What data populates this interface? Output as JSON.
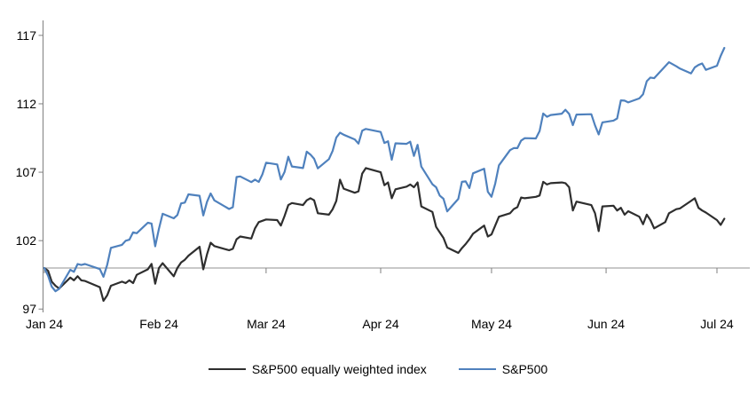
{
  "chart_data": {
    "type": "line",
    "title": "",
    "xlabel": "",
    "ylabel": "",
    "ylim": [
      97,
      118.5
    ],
    "grid": false,
    "legend_position": "bottom",
    "baseline_value": 100,
    "y_ticks": [
      97,
      102,
      107,
      112,
      117
    ],
    "x_tick_labels": [
      "Jan 24",
      "Feb 24",
      "Mar 24",
      "Apr 24",
      "May 24",
      "Jun 24",
      "Jul 24"
    ],
    "x_tick_dates": [
      "01-01",
      "02-01",
      "03-01",
      "04-01",
      "05-01",
      "06-01",
      "07-01"
    ],
    "colors": {
      "equal_weight_line": "#2e2e2e",
      "sp500_line": "#4f81bd",
      "axis": "#7f7f7f",
      "baseline": "#a6a6a6",
      "text": "#000000"
    },
    "x": [
      "01-01",
      "01-02",
      "01-03",
      "01-04",
      "01-05",
      "01-08",
      "01-09",
      "01-10",
      "01-11",
      "01-12",
      "01-16",
      "01-17",
      "01-18",
      "01-19",
      "01-22",
      "01-23",
      "01-24",
      "01-25",
      "01-26",
      "01-29",
      "01-30",
      "01-31",
      "02-01",
      "02-02",
      "02-05",
      "02-06",
      "02-07",
      "02-08",
      "02-09",
      "02-12",
      "02-13",
      "02-14",
      "02-15",
      "02-16",
      "02-20",
      "02-21",
      "02-22",
      "02-23",
      "02-26",
      "02-27",
      "02-28",
      "02-29",
      "03-01",
      "03-04",
      "03-05",
      "03-06",
      "03-07",
      "03-08",
      "03-11",
      "03-12",
      "03-13",
      "03-14",
      "03-15",
      "03-18",
      "03-19",
      "03-20",
      "03-21",
      "03-22",
      "03-25",
      "03-26",
      "03-27",
      "03-28",
      "04-01",
      "04-02",
      "04-03",
      "04-04",
      "04-05",
      "04-08",
      "04-09",
      "04-10",
      "04-11",
      "04-12",
      "04-15",
      "04-16",
      "04-17",
      "04-18",
      "04-19",
      "04-22",
      "04-23",
      "04-24",
      "04-25",
      "04-26",
      "04-29",
      "04-30",
      "05-01",
      "05-02",
      "05-03",
      "05-06",
      "05-07",
      "05-08",
      "05-09",
      "05-10",
      "05-13",
      "05-14",
      "05-15",
      "05-16",
      "05-17",
      "05-20",
      "05-21",
      "05-22",
      "05-23",
      "05-24",
      "05-28",
      "05-29",
      "05-30",
      "05-31",
      "06-03",
      "06-04",
      "06-05",
      "06-06",
      "06-07",
      "06-10",
      "06-11",
      "06-12",
      "06-13",
      "06-14",
      "06-17",
      "06-18",
      "06-20",
      "06-21",
      "06-24",
      "06-25",
      "06-26",
      "06-27",
      "06-28",
      "07-01",
      "07-02",
      "07-03"
    ],
    "series": [
      {
        "name": "S&P500 equally weighted index",
        "values": [
          100.0,
          99.8,
          99.0,
          98.7,
          98.5,
          99.3,
          99.1,
          99.4,
          99.1,
          99.05,
          98.6,
          97.6,
          98.0,
          98.7,
          99.0,
          98.9,
          99.1,
          98.9,
          99.5,
          99.9,
          100.3,
          98.85,
          100.0,
          100.35,
          99.4,
          100.0,
          100.4,
          100.6,
          100.9,
          101.55,
          99.9,
          101.0,
          101.85,
          101.6,
          101.3,
          101.4,
          102.1,
          102.3,
          102.15,
          102.9,
          103.35,
          103.45,
          103.55,
          103.5,
          103.1,
          103.8,
          104.6,
          104.75,
          104.6,
          104.95,
          105.1,
          104.95,
          104.0,
          103.9,
          104.3,
          104.9,
          106.45,
          105.8,
          105.5,
          105.6,
          106.9,
          107.3,
          107.0,
          106.05,
          106.25,
          105.1,
          105.75,
          105.95,
          106.1,
          105.9,
          106.25,
          104.5,
          104.1,
          103.0,
          102.6,
          102.2,
          101.5,
          101.1,
          101.45,
          101.75,
          102.1,
          102.5,
          103.1,
          102.3,
          102.45,
          103.1,
          103.75,
          104.0,
          104.3,
          104.45,
          105.15,
          105.1,
          105.2,
          105.3,
          106.3,
          106.1,
          106.2,
          106.25,
          106.2,
          105.9,
          104.2,
          104.85,
          104.6,
          104.0,
          102.7,
          104.5,
          104.55,
          104.2,
          104.4,
          103.9,
          104.15,
          103.75,
          103.2,
          103.9,
          103.5,
          102.9,
          103.35,
          104.0,
          104.3,
          104.35,
          104.9,
          105.1,
          104.4,
          104.2,
          104.05,
          103.5,
          103.15,
          103.6
        ]
      },
      {
        "name": "S&P500",
        "values": [
          100.0,
          99.43,
          98.64,
          98.3,
          98.48,
          99.87,
          99.72,
          100.29,
          100.22,
          100.29,
          99.92,
          99.36,
          100.23,
          101.47,
          101.69,
          101.99,
          102.07,
          102.61,
          102.54,
          103.31,
          103.25,
          101.59,
          102.86,
          103.96,
          103.63,
          103.87,
          104.72,
          104.78,
          105.38,
          105.28,
          103.84,
          104.84,
          105.45,
          104.94,
          104.31,
          104.44,
          106.65,
          106.69,
          106.28,
          106.46,
          106.29,
          106.84,
          107.7,
          107.57,
          106.47,
          107.02,
          108.13,
          107.42,
          107.3,
          108.5,
          108.29,
          107.98,
          107.28,
          107.96,
          108.57,
          109.53,
          109.89,
          109.74,
          109.4,
          109.09,
          110.03,
          110.16,
          109.94,
          109.14,
          109.26,
          107.91,
          109.11,
          109.07,
          109.23,
          108.19,
          109.0,
          107.41,
          106.12,
          105.9,
          105.29,
          105.06,
          104.14,
          105.05,
          106.3,
          106.33,
          105.84,
          106.92,
          107.26,
          105.57,
          105.21,
          106.17,
          107.5,
          108.61,
          108.76,
          108.76,
          109.31,
          109.49,
          109.47,
          110.0,
          111.29,
          111.05,
          111.18,
          111.28,
          111.56,
          111.26,
          110.44,
          111.21,
          111.24,
          110.42,
          109.76,
          110.64,
          110.77,
          110.93,
          112.25,
          112.23,
          112.1,
          112.39,
          112.69,
          113.65,
          113.92,
          113.87,
          114.75,
          115.04,
          114.74,
          114.57,
          114.22,
          114.66,
          114.84,
          114.95,
          114.48,
          114.78,
          115.5,
          116.08
        ]
      }
    ]
  }
}
